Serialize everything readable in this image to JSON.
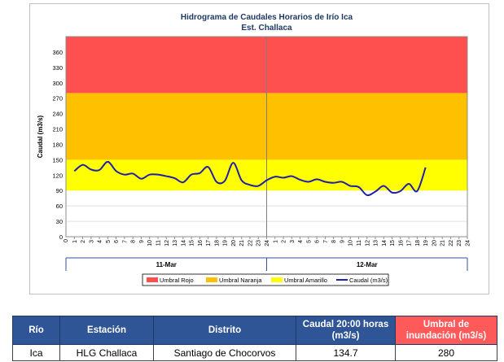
{
  "chart_data": {
    "type": "line",
    "title": "Hidrograma de Caudales Horarios de Irío Ica",
    "subtitle": "Est. Challaca",
    "ylabel": "Caudal  (m3/s)",
    "ylim": [
      0,
      390
    ],
    "yticks": [
      0,
      30,
      60,
      90,
      120,
      150,
      180,
      210,
      240,
      270,
      300,
      330,
      360
    ],
    "hour_ticks": [
      "1",
      "2",
      "3",
      "4",
      "5",
      "6",
      "7",
      "8",
      "9",
      "10",
      "11",
      "12",
      "13",
      "14",
      "15",
      "16",
      "17",
      "18",
      "19",
      "20",
      "21",
      "22",
      "23",
      "24",
      "1",
      "2",
      "3",
      "4",
      "5",
      "6",
      "7",
      "8",
      "9",
      "10",
      "11",
      "12",
      "13",
      "14",
      "15",
      "16",
      "17",
      "18",
      "19",
      "20",
      "21",
      "22",
      "23",
      "24"
    ],
    "days": [
      "11-Mar",
      "12-Mar"
    ],
    "bands": [
      {
        "name": "Umbral Amarillo",
        "from": 90,
        "to": 150,
        "color": "#ffff00"
      },
      {
        "name": "Umbral Naranja",
        "from": 150,
        "to": 280,
        "color": "#ffc000"
      },
      {
        "name": "Umbral Rojo",
        "from": 280,
        "to": 390,
        "color": "#ff5050"
      }
    ],
    "series": [
      {
        "name": "Caudal (m3/s)",
        "color": "#1f1fa8",
        "values": [
          128,
          140,
          131,
          130,
          146,
          128,
          121,
          123,
          113,
          121,
          121,
          118,
          114,
          106,
          121,
          124,
          136,
          107,
          109,
          144,
          110,
          101,
          99,
          110,
          117,
          115,
          118,
          111,
          107,
          112,
          107,
          105,
          107,
          99,
          97,
          81,
          88,
          99,
          86,
          89,
          103,
          89,
          135
        ]
      }
    ],
    "grid": true,
    "legend_position": "bottom",
    "legend": [
      "Umbral Rojo",
      "Umbral Naranja",
      "Umbral Amarillo",
      "Caudal (m3/s)"
    ]
  },
  "table": {
    "headers": [
      "Río",
      "Estación",
      "Distrito",
      "Caudal 20:00 horas (m3/s)",
      "Umbral de inundación (m3/s)"
    ],
    "rows": [
      [
        "Ica",
        "HLG Challaca",
        "Santiago de Chocorvos",
        "134.7",
        "280"
      ]
    ]
  }
}
